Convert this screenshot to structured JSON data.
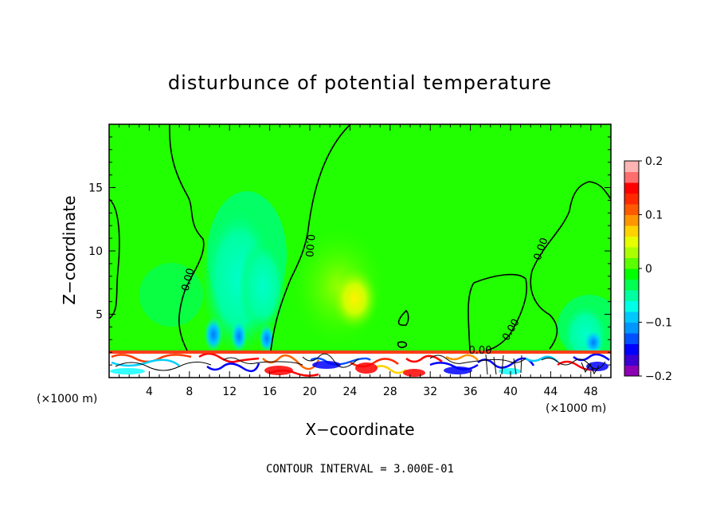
{
  "chart_data": {
    "type": "heatmap",
    "title": "disturbunce of potential temperature",
    "xlabel": "X−coordinate",
    "ylabel": "Z−coordinate",
    "x_unit_left": "(×1000 m)",
    "x_unit_right": "(×1000 m)",
    "xlim": [
      0,
      50
    ],
    "ylim": [
      0,
      20
    ],
    "xticks": [
      4,
      8,
      12,
      16,
      20,
      24,
      28,
      32,
      36,
      40,
      44,
      48
    ],
    "yticks": [
      5,
      10,
      15
    ],
    "colorbar": {
      "range": [
        -0.2,
        0.2
      ],
      "tick_labels": [
        "0.2",
        "0.1",
        "0",
        "−0.1",
        "−0.2"
      ],
      "tick_values": [
        0.2,
        0.1,
        0,
        -0.1,
        -0.2
      ],
      "colors": [
        "#8e00b4",
        "#3c00d2",
        "#0000ff",
        "#0050ff",
        "#0096ff",
        "#00c8ff",
        "#00ffe6",
        "#00ffa0",
        "#00ff50",
        "#00ff00",
        "#5aff00",
        "#aaff00",
        "#e6ff00",
        "#ffd200",
        "#ff9600",
        "#ff5a00",
        "#ff2800",
        "#ff0000",
        "#ff6e6e",
        "#ffb4b4"
      ]
    },
    "contour_label": "0.00",
    "contour_interval_text": "CONTOUR INTERVAL = 3.000E-01"
  }
}
